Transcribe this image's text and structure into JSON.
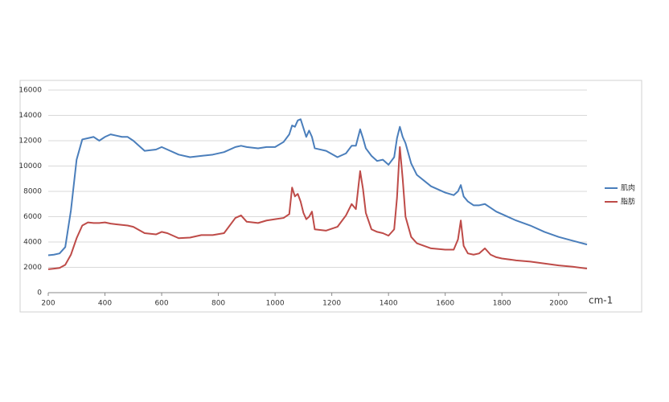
{
  "chart_data": {
    "type": "line",
    "x_label": "cm-1",
    "x": [
      200,
      220,
      240,
      260,
      280,
      300,
      320,
      340,
      360,
      380,
      400,
      420,
      440,
      460,
      480,
      500,
      540,
      580,
      600,
      620,
      660,
      700,
      740,
      780,
      820,
      860,
      880,
      900,
      940,
      970,
      1000,
      1030,
      1050,
      1060,
      1070,
      1080,
      1090,
      1100,
      1110,
      1120,
      1130,
      1140,
      1180,
      1220,
      1250,
      1270,
      1285,
      1300,
      1310,
      1320,
      1340,
      1360,
      1380,
      1400,
      1420,
      1430,
      1440,
      1450,
      1460,
      1480,
      1500,
      1550,
      1600,
      1630,
      1645,
      1655,
      1665,
      1680,
      1700,
      1720,
      1740,
      1760,
      1780,
      1800,
      1850,
      1900,
      1950,
      2000,
      2050,
      2100
    ],
    "series": [
      {
        "name": "肌肉",
        "color": "#4a7ebb",
        "values": [
          2950,
          3000,
          3100,
          3600,
          6500,
          10500,
          12100,
          12200,
          12300,
          12000,
          12300,
          12500,
          12400,
          12300,
          12300,
          12000,
          11200,
          11300,
          11500,
          11300,
          10900,
          10700,
          10800,
          10900,
          11100,
          11500,
          11600,
          11500,
          11400,
          11500,
          11500,
          11900,
          12500,
          13200,
          13100,
          13600,
          13700,
          13000,
          12300,
          12800,
          12300,
          11400,
          11200,
          10700,
          11000,
          11600,
          11600,
          12900,
          12200,
          11400,
          10800,
          10400,
          10500,
          10100,
          10700,
          12200,
          13100,
          12300,
          11800,
          10200,
          9300,
          8400,
          7900,
          7700,
          8000,
          8500,
          7600,
          7200,
          6900,
          6900,
          7000,
          6700,
          6400,
          6200,
          5700,
          5300,
          4800,
          4400,
          4100,
          3800
        ]
      },
      {
        "name": "脂肪",
        "color": "#be4b48",
        "values": [
          1850,
          1900,
          1950,
          2200,
          3000,
          4300,
          5300,
          5550,
          5500,
          5500,
          5550,
          5450,
          5400,
          5350,
          5300,
          5200,
          4700,
          4600,
          4800,
          4700,
          4300,
          4350,
          4550,
          4550,
          4700,
          5900,
          6100,
          5600,
          5500,
          5700,
          5800,
          5900,
          6200,
          8300,
          7600,
          7800,
          7200,
          6300,
          5800,
          6000,
          6400,
          5000,
          4900,
          5200,
          6100,
          7000,
          6600,
          9600,
          8200,
          6300,
          5000,
          4800,
          4700,
          4500,
          5000,
          7500,
          11500,
          9000,
          6000,
          4400,
          3900,
          3500,
          3400,
          3400,
          4200,
          5700,
          3700,
          3100,
          3000,
          3100,
          3500,
          3000,
          2800,
          2700,
          2550,
          2450,
          2300,
          2150,
          2050,
          1900
        ]
      }
    ],
    "xlim": [
      200,
      2100
    ],
    "xticks": [
      200,
      400,
      600,
      800,
      1000,
      1200,
      1400,
      1600,
      1800,
      2000
    ],
    "ylim": [
      0,
      16000
    ],
    "yticks": [
      0,
      2000,
      4000,
      6000,
      8000,
      10000,
      12000,
      14000,
      16000
    ],
    "grid": true,
    "legend": "right"
  }
}
